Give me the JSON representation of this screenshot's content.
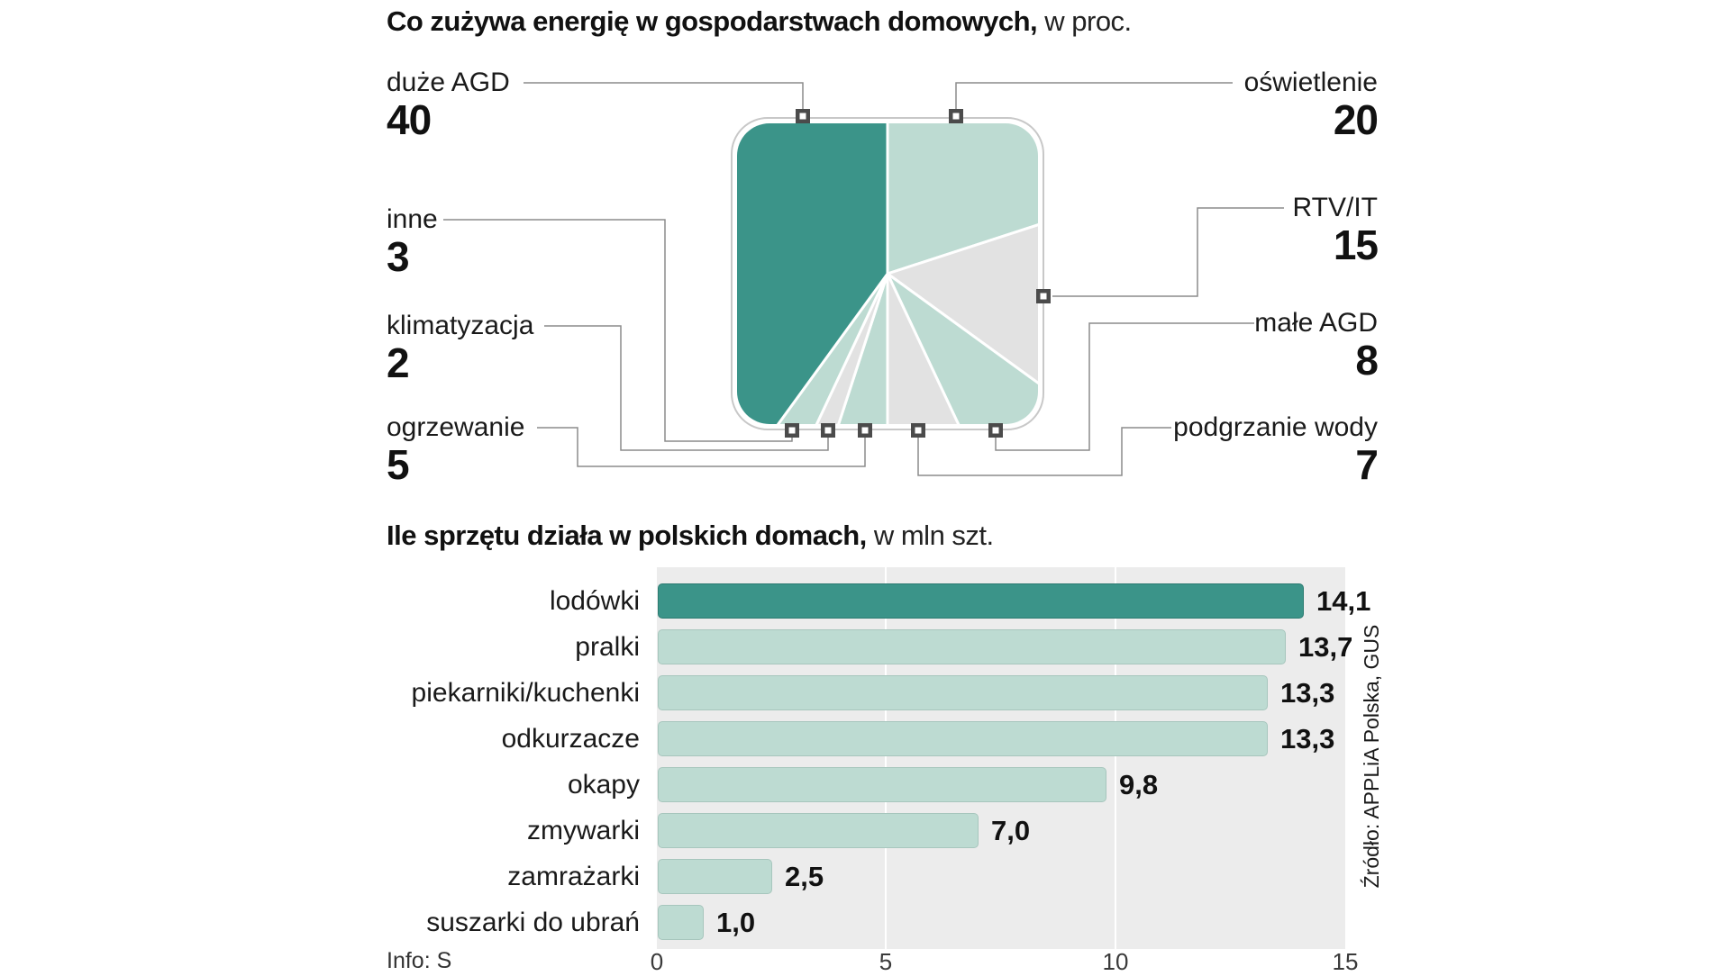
{
  "colors": {
    "teal": "#3B9489",
    "teal_border": "#2D7C72",
    "mint": "#BDDBD2",
    "mint_border": "#A7C6BD",
    "gray": "#E2E2E2",
    "plot_bg": "#ECECEC",
    "text": "#1A1A1A",
    "leader_line": "#8C8C8C",
    "marker": "#4B4B4B"
  },
  "pie": {
    "title_bold": "Co zużywa energię w gospodarstwach domowych,",
    "title_light": " w proc.",
    "slices": [
      {
        "label": "oświetlenie",
        "value": "20",
        "pct": 20,
        "color": "mint"
      },
      {
        "label": "RTV/IT",
        "value": "15",
        "pct": 15,
        "color": "gray"
      },
      {
        "label": "małe AGD",
        "value": "8",
        "pct": 8,
        "color": "mint"
      },
      {
        "label": "podgrzanie wody",
        "value": "7",
        "pct": 7,
        "color": "gray"
      },
      {
        "label": "ogrzewanie",
        "value": "5",
        "pct": 5,
        "color": "mint"
      },
      {
        "label": "klimatyzacja",
        "value": "2",
        "pct": 2,
        "color": "gray"
      },
      {
        "label": "inne",
        "value": "3",
        "pct": 3,
        "color": "mint"
      },
      {
        "label": "duże AGD",
        "value": "40",
        "pct": 40,
        "color": "teal"
      }
    ]
  },
  "bars": {
    "title_bold": "Ile sprzętu działa w polskich domach,",
    "title_light": " w mln szt.",
    "x_max": 15,
    "axis_ticks": [
      "0",
      "5",
      "10",
      "15"
    ],
    "items": [
      {
        "label": "lodówki",
        "value": 14.1,
        "value_label": "14,1",
        "color": "teal"
      },
      {
        "label": "pralki",
        "value": 13.7,
        "value_label": "13,7",
        "color": "mint"
      },
      {
        "label": "piekarniki/kuchenki",
        "value": 13.3,
        "value_label": "13,3",
        "color": "mint"
      },
      {
        "label": "odkurzacze",
        "value": 13.3,
        "value_label": "13,3",
        "color": "mint"
      },
      {
        "label": "okapy",
        "value": 9.8,
        "value_label": "9,8",
        "color": "mint"
      },
      {
        "label": "zmywarki",
        "value": 7.0,
        "value_label": "7,0",
        "color": "mint"
      },
      {
        "label": "zamrażarki",
        "value": 2.5,
        "value_label": "2,5",
        "color": "mint"
      },
      {
        "label": "suszarki do ubrań",
        "value": 1.0,
        "value_label": "1,0",
        "color": "mint"
      }
    ]
  },
  "footer": {
    "info": "Info: S",
    "source": "Źródło: APPLiA Polska, GUS"
  },
  "chart_data": [
    {
      "type": "pie",
      "title": "Co zużywa energię w gospodarstwach domowych, w proc.",
      "labels": [
        "duże AGD",
        "oświetlenie",
        "RTV/IT",
        "małe AGD",
        "podgrzanie wody",
        "ogrzewanie",
        "klimatyzacja",
        "inne"
      ],
      "values": [
        40,
        20,
        15,
        8,
        7,
        5,
        2,
        3
      ],
      "unit": "proc.",
      "shape": "rounded-square-pie"
    },
    {
      "type": "bar",
      "orientation": "horizontal",
      "title": "Ile sprzętu działa w polskich domach, w mln szt.",
      "categories": [
        "lodówki",
        "pralki",
        "piekarniki/kuchenki",
        "odkurzacze",
        "okapy",
        "zmywarki",
        "zamrażarki",
        "suszarki do ubrań"
      ],
      "values": [
        14.1,
        13.7,
        13.3,
        13.3,
        9.8,
        7.0,
        2.5,
        1.0
      ],
      "xlim": [
        0,
        15
      ],
      "x_ticks": [
        0,
        5,
        10,
        15
      ],
      "unit": "mln szt.",
      "grid": true,
      "legend": false
    }
  ]
}
